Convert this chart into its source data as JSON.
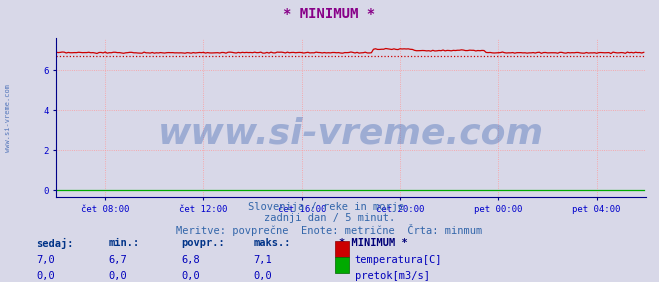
{
  "title": "* MINIMUM *",
  "title_color": "#880088",
  "title_fontsize": 10,
  "bg_color": "#d8d8e8",
  "plot_bg_color": "#d8d8e8",
  "grid_color": "#ff9999",
  "grid_style": ":",
  "tick_color": "#0000cc",
  "x_tick_labels": [
    "čet 08:00",
    "čet 12:00",
    "čet 16:00",
    "čet 20:00",
    "pet 00:00",
    "pet 04:00"
  ],
  "y_tick_labels": [
    "0",
    "2",
    "4",
    "6"
  ],
  "y_tick_positions": [
    0,
    2,
    4,
    6
  ],
  "ylim": [
    -0.35,
    7.6
  ],
  "xlim_min": 0,
  "xlim_max": 288,
  "temp_color": "#cc0000",
  "pretok_color": "#00aa00",
  "watermark": "www.si-vreme.com",
  "watermark_color": "#5577bb",
  "watermark_alpha": 0.45,
  "watermark_fontsize": 26,
  "side_label": "www.si-vreme.com",
  "side_label_color": "#5577bb",
  "subtitle1": "Slovenija / reke in morje.",
  "subtitle2": "zadnji dan / 5 minut.",
  "subtitle3": "Meritve: povprečne  Enote: metrične  Črta: minmum",
  "subtitle_color": "#3366aa",
  "subtitle_fontsize": 7.5,
  "legend_title": "* MINIMUM *",
  "legend_color": "#000077",
  "stats_labels": [
    "sedaj:",
    "min.:",
    "povpr.:",
    "maks.:"
  ],
  "stats_temp": [
    "7,0",
    "6,7",
    "6,8",
    "7,1"
  ],
  "stats_pretok": [
    "0,0",
    "0,0",
    "0,0",
    "0,0"
  ],
  "stats_color": "#0000bb",
  "stats_bold_color": "#003388",
  "stats_fontsize": 7.5,
  "temp_avg": 6.8,
  "temp_min_val": 6.7,
  "arrow_color": "#cc0000",
  "axis_color": "#000088",
  "n_points": 288
}
